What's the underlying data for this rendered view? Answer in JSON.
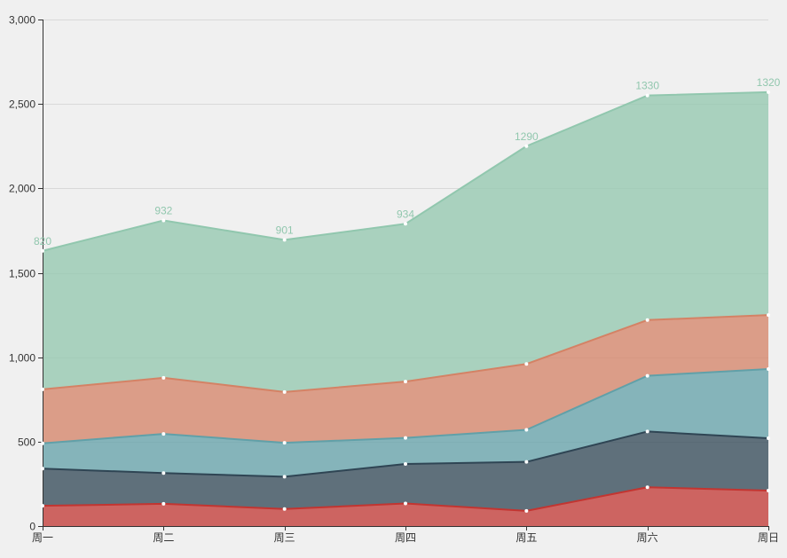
{
  "chart": {
    "background_color": "#f0f0f0",
    "grid_line_color": "#d9d9d9",
    "axis_color": "#333333",
    "axis_label_color": "#333333",
    "value_label_color": "#91c7ae",
    "marker_color": "#ffffff",
    "area_opacity": 0.75,
    "line_width": 2
  },
  "chart_data": {
    "type": "area",
    "stacked": true,
    "title": "",
    "xlabel": "",
    "ylabel": "",
    "legend": "none",
    "grid": true,
    "categories": [
      "周一",
      "周二",
      "周三",
      "周四",
      "周五",
      "周六",
      "周日"
    ],
    "series": [
      {
        "color": "#c23531",
        "values": [
          120,
          132,
          101,
          134,
          90,
          230,
          210
        ],
        "show_labels": false
      },
      {
        "color": "#2f4554",
        "values": [
          220,
          182,
          191,
          234,
          290,
          330,
          310
        ],
        "show_labels": false
      },
      {
        "color": "#61a0a8",
        "values": [
          150,
          232,
          201,
          154,
          190,
          330,
          410
        ],
        "show_labels": false
      },
      {
        "color": "#d48265",
        "values": [
          320,
          332,
          301,
          334,
          390,
          330,
          320
        ],
        "show_labels": false
      },
      {
        "color": "#91c7ae",
        "values": [
          820,
          932,
          901,
          934,
          1290,
          1330,
          1320
        ],
        "show_labels": true
      }
    ],
    "value_labels": [
      "820",
      "932",
      "901",
      "934",
      "1290",
      "1330",
      "1320"
    ],
    "ylim": [
      0,
      3000
    ],
    "y_tick_interval": 500,
    "y_tick_labels": [
      "0",
      "500",
      "1,000",
      "1,500",
      "2,000",
      "2,500",
      "3,000"
    ]
  }
}
